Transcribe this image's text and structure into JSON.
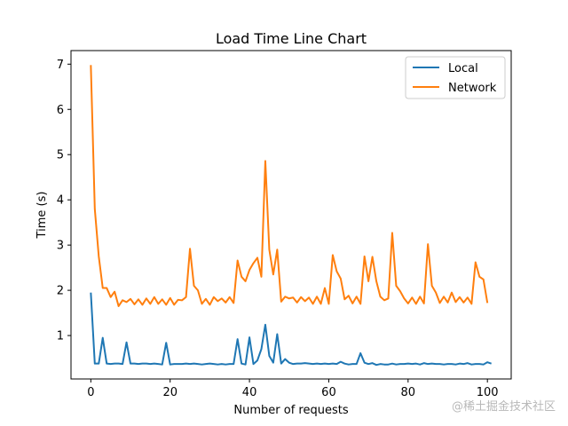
{
  "chart_data": {
    "type": "line",
    "title": "Load Time Line Chart",
    "xlabel": "Number of requests",
    "ylabel": "Time (s)",
    "xlim": [
      -5,
      106
    ],
    "ylim": [
      0.04,
      7.3
    ],
    "xticks": [
      0,
      20,
      40,
      60,
      80,
      100
    ],
    "yticks": [
      1,
      2,
      3,
      4,
      5,
      6,
      7
    ],
    "grid": false,
    "legend_position": "top-right",
    "series": [
      {
        "name": "Local",
        "color": "#1f77b4",
        "x": [
          0,
          1,
          2,
          3,
          4,
          5,
          6,
          7,
          8,
          9,
          10,
          11,
          12,
          13,
          14,
          15,
          16,
          17,
          18,
          19,
          20,
          21,
          22,
          23,
          24,
          25,
          26,
          27,
          28,
          29,
          30,
          31,
          32,
          33,
          34,
          35,
          36,
          37,
          38,
          39,
          40,
          41,
          42,
          43,
          44,
          45,
          46,
          47,
          48,
          49,
          50,
          51,
          52,
          53,
          54,
          55,
          56,
          57,
          58,
          59,
          60,
          61,
          62,
          63,
          64,
          65,
          66,
          67,
          68,
          69,
          70,
          71,
          72,
          73,
          74,
          75,
          76,
          77,
          78,
          79,
          80,
          81,
          82,
          83,
          84,
          85,
          86,
          87,
          88,
          89,
          90,
          91,
          92,
          93,
          94,
          95,
          96,
          97,
          98,
          99,
          100,
          101
        ],
        "y": [
          1.95,
          0.38,
          0.38,
          0.95,
          0.38,
          0.37,
          0.38,
          0.38,
          0.37,
          0.85,
          0.38,
          0.38,
          0.37,
          0.38,
          0.38,
          0.37,
          0.38,
          0.37,
          0.36,
          0.84,
          0.36,
          0.37,
          0.37,
          0.37,
          0.38,
          0.37,
          0.38,
          0.37,
          0.36,
          0.37,
          0.38,
          0.37,
          0.36,
          0.37,
          0.36,
          0.37,
          0.37,
          0.92,
          0.38,
          0.36,
          0.96,
          0.37,
          0.45,
          0.7,
          1.24,
          0.55,
          0.4,
          1.03,
          0.38,
          0.48,
          0.4,
          0.37,
          0.38,
          0.38,
          0.39,
          0.38,
          0.37,
          0.38,
          0.37,
          0.38,
          0.37,
          0.38,
          0.37,
          0.42,
          0.38,
          0.36,
          0.37,
          0.37,
          0.61,
          0.4,
          0.37,
          0.39,
          0.35,
          0.37,
          0.36,
          0.36,
          0.38,
          0.36,
          0.37,
          0.37,
          0.38,
          0.37,
          0.38,
          0.36,
          0.39,
          0.37,
          0.38,
          0.37,
          0.37,
          0.36,
          0.37,
          0.37,
          0.36,
          0.38,
          0.37,
          0.39,
          0.36,
          0.37,
          0.37,
          0.36,
          0.41,
          0.38
        ]
      },
      {
        "name": "Network",
        "color": "#ff7f0e",
        "x": [
          0,
          1,
          2,
          3,
          4,
          5,
          6,
          7,
          8,
          9,
          10,
          11,
          12,
          13,
          14,
          15,
          16,
          17,
          18,
          19,
          20,
          21,
          22,
          23,
          24,
          25,
          26,
          27,
          28,
          29,
          30,
          31,
          32,
          33,
          34,
          35,
          36,
          37,
          38,
          39,
          40,
          41,
          42,
          43,
          44,
          45,
          46,
          47,
          48,
          49,
          50,
          51,
          52,
          53,
          54,
          55,
          56,
          57,
          58,
          59,
          60,
          61,
          62,
          63,
          64,
          65,
          66,
          67,
          68,
          69,
          70,
          71,
          72,
          73,
          74,
          75,
          76,
          77,
          78,
          79,
          80,
          81,
          82,
          83,
          84,
          85,
          86,
          87,
          88,
          89,
          90,
          91,
          92,
          93,
          94,
          95,
          96,
          97,
          98,
          99,
          100
        ],
        "y": [
          6.98,
          3.8,
          2.75,
          2.05,
          2.05,
          1.85,
          1.97,
          1.65,
          1.78,
          1.74,
          1.81,
          1.69,
          1.8,
          1.68,
          1.82,
          1.7,
          1.85,
          1.7,
          1.8,
          1.68,
          1.83,
          1.68,
          1.79,
          1.78,
          1.85,
          2.92,
          2.1,
          2.0,
          1.7,
          1.81,
          1.68,
          1.85,
          1.76,
          1.82,
          1.73,
          1.85,
          1.72,
          2.66,
          2.3,
          2.2,
          2.45,
          2.6,
          2.72,
          2.3,
          4.86,
          2.9,
          2.35,
          2.9,
          1.75,
          1.86,
          1.82,
          1.84,
          1.73,
          1.85,
          1.76,
          1.84,
          1.7,
          1.86,
          1.7,
          2.05,
          1.7,
          2.78,
          2.42,
          2.26,
          1.8,
          1.88,
          1.71,
          1.86,
          1.7,
          2.75,
          2.2,
          2.74,
          2.2,
          1.86,
          1.78,
          1.82,
          3.27,
          2.1,
          1.98,
          1.82,
          1.71,
          1.84,
          1.7,
          1.86,
          1.71,
          3.02,
          2.1,
          1.95,
          1.72,
          1.86,
          1.73,
          1.95,
          1.74,
          1.85,
          1.73,
          1.84,
          1.7,
          2.62,
          2.3,
          2.24,
          1.72
        ]
      }
    ]
  },
  "watermark_text": "@稀土掘金技术社区"
}
